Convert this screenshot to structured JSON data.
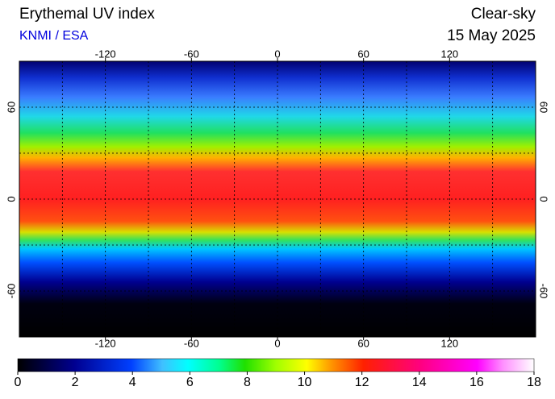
{
  "title": "Erythemal UV index",
  "source": "KNMI / ESA",
  "sky": "Clear-sky",
  "date": "15 May 2025",
  "map": {
    "xlim": [
      -180,
      180
    ],
    "ylim": [
      -90,
      90
    ],
    "xticks": [
      -120,
      -60,
      0,
      60,
      120
    ],
    "yticks": [
      -60,
      0,
      60
    ]
  },
  "colorbar": {
    "lim": [
      0,
      18
    ],
    "ticks": [
      0,
      2,
      4,
      6,
      8,
      10,
      12,
      14,
      16,
      18
    ]
  }
}
